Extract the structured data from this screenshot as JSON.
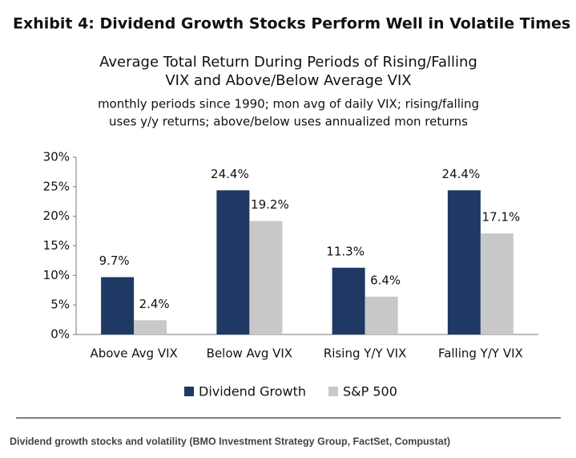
{
  "chart_data": {
    "type": "bar",
    "exhibit": "Exhibit 4: Dividend Growth Stocks Perform Well in Volatile Times",
    "title": [
      "Average Total Return During Periods of Rising/Falling",
      "VIX and Above/Below Average VIX"
    ],
    "subtitle": [
      "monthly periods since 1990; mon avg of daily VIX; rising/falling",
      "uses y/y returns; above/below uses annualized mon returns"
    ],
    "categories": [
      "Above Avg VIX",
      "Below Avg VIX",
      "Rising Y/Y VIX",
      "Falling Y/Y VIX"
    ],
    "series": [
      {
        "name": "Dividend Growth",
        "color": "#1f3864",
        "values": [
          9.7,
          24.4,
          11.3,
          24.4
        ],
        "value_labels": [
          "9.7%",
          "24.4%",
          "11.3%",
          "24.4%"
        ]
      },
      {
        "name": "S&P 500",
        "color": "#c8c8c8",
        "values": [
          2.4,
          19.2,
          6.4,
          17.1
        ],
        "value_labels": [
          "2.4%",
          "19.2%",
          "6.4%",
          "17.1%"
        ]
      }
    ],
    "ylim": [
      0,
      30
    ],
    "yticks": [
      {
        "value": 0,
        "label": "0%"
      },
      {
        "value": 5,
        "label": "5%"
      },
      {
        "value": 10,
        "label": "10%"
      },
      {
        "value": 15,
        "label": "15%"
      },
      {
        "value": 20,
        "label": "20%"
      },
      {
        "value": 25,
        "label": "25%"
      },
      {
        "value": 30,
        "label": "30%"
      }
    ],
    "grid": false,
    "legend": "bottom"
  },
  "caption": "Dividend growth stocks and volatility (BMO Investment Strategy Group, FactSet, Compustat)"
}
